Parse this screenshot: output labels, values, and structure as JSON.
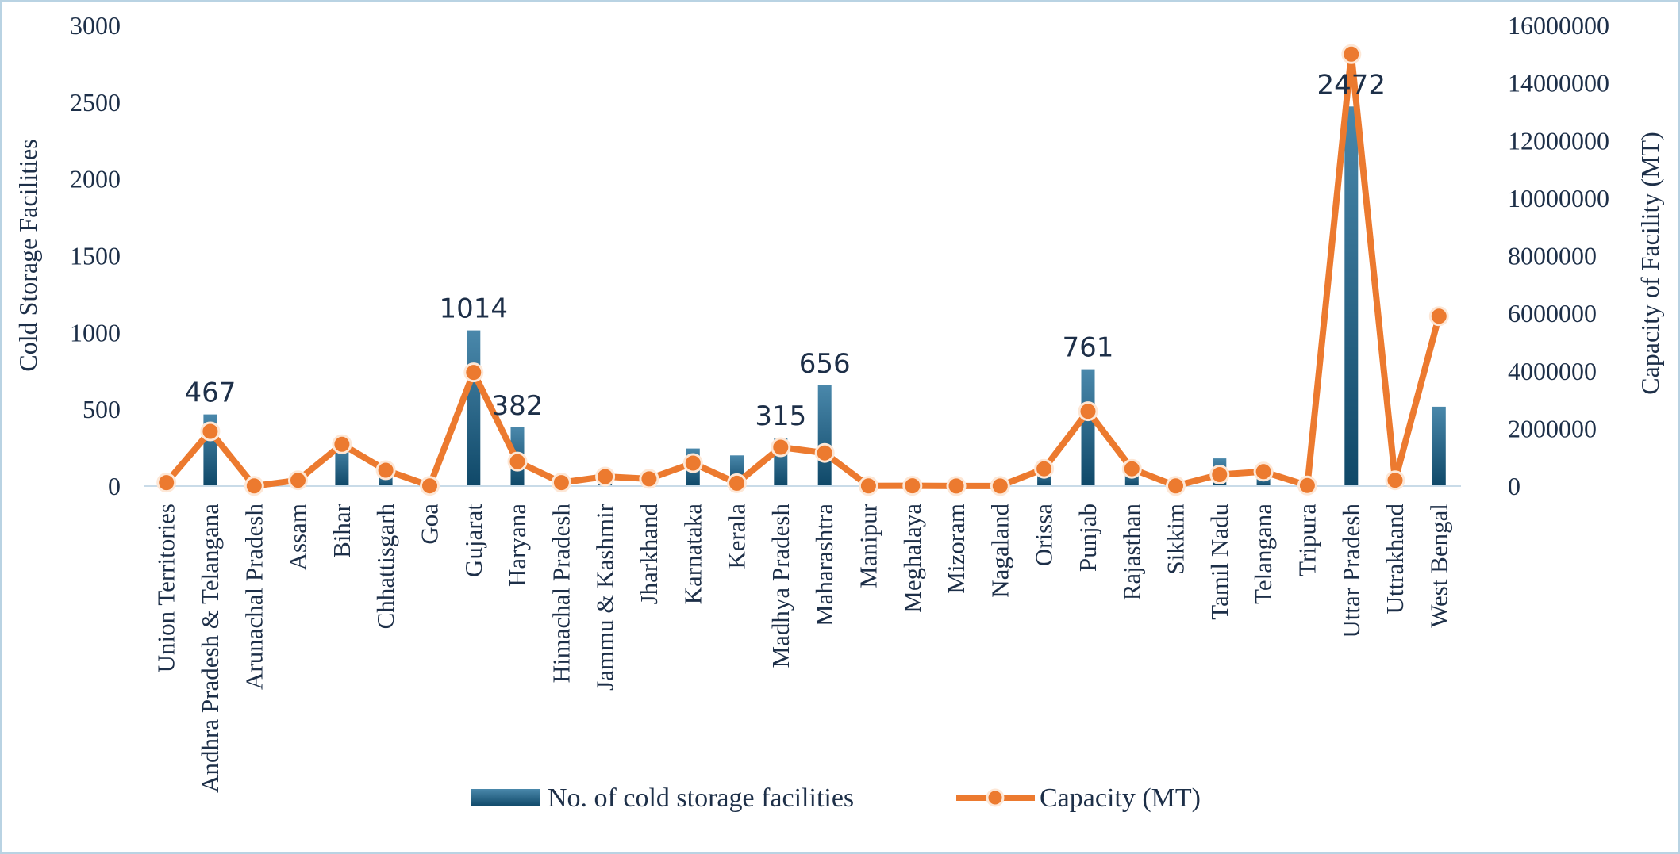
{
  "chart_data": {
    "type": "bar",
    "title": "",
    "categories": [
      "Union Territories",
      "Andhra Pradesh & Telangana",
      "Arunachal Pradesh",
      "Assam",
      "Bihar",
      "Chhattisgarh",
      "Goa",
      "Gujarat",
      "Haryana",
      "Himachal Pradesh",
      "Jammu & Kashmir",
      "Jharkhand",
      "Karnataka",
      "Kerala",
      "Madhya Pradesh",
      "Maharashtra",
      "Manipur",
      "Meghalaya",
      "Mizoram",
      "Nagaland",
      "Orissa",
      "Punjab",
      "Rajasthan",
      "Sikkim",
      "Tamil Nadu",
      "Telangana",
      "Tripura",
      "Uttar Pradesh",
      "Uttrakhand",
      "West Bengal"
    ],
    "ylabel": "Cold Storage Facilities",
    "y2label": "Capacity of Facility (MT)",
    "ylim": [
      0,
      3000
    ],
    "y2lim": [
      0,
      16000000
    ],
    "yticks": [
      "0",
      "500",
      "1000",
      "1500",
      "2000",
      "2500",
      "3000"
    ],
    "y2ticks": [
      "0",
      "2000000",
      "4000000",
      "6000000",
      "8000000",
      "10000000",
      "12000000",
      "14000000",
      "16000000"
    ],
    "grid": false,
    "legend_position": "bottom",
    "series": [
      {
        "name": "No. of cold storage facilities",
        "type": "bar",
        "axis": "left",
        "color": "#1f5f82",
        "values": [
          30,
          467,
          3,
          30,
          270,
          90,
          5,
          1014,
          382,
          40,
          40,
          55,
          245,
          200,
          315,
          656,
          3,
          4,
          3,
          5,
          120,
          761,
          120,
          2,
          180,
          65,
          5,
          2472,
          30,
          517
        ]
      },
      {
        "name": "Capacity (MT)",
        "type": "line",
        "axis": "right",
        "color": "#ec7a2f",
        "values": [
          120000,
          1900000,
          5000,
          200000,
          1450000,
          550000,
          7000,
          3950000,
          850000,
          120000,
          330000,
          250000,
          800000,
          100000,
          1350000,
          1150000,
          5000,
          10000,
          2000,
          2000,
          600000,
          2600000,
          600000,
          5000,
          400000,
          500000,
          20000,
          15000000,
          200000,
          5900000
        ]
      }
    ],
    "data_labels": [
      {
        "category": "Andhra Pradesh & Telangana",
        "text": "467"
      },
      {
        "category": "Gujarat",
        "text": "1014"
      },
      {
        "category": "Haryana",
        "text": "382"
      },
      {
        "category": "Madhya Pradesh",
        "text": "315"
      },
      {
        "category": "Maharashtra",
        "text": "656"
      },
      {
        "category": "Punjab",
        "text": "761"
      },
      {
        "category": "Uttar Pradesh",
        "text": "2472"
      }
    ]
  }
}
